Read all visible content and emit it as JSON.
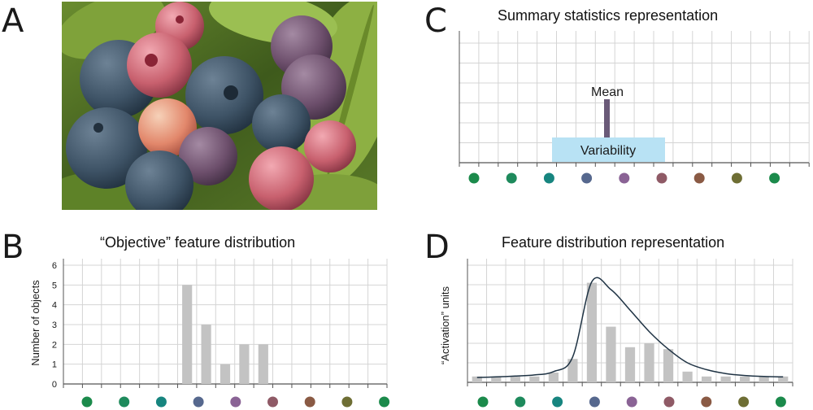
{
  "panels": {
    "a": {
      "letter": "A"
    },
    "b": {
      "letter": "B",
      "title": "“Objective” feature distribution",
      "ylabel": "Number of objects",
      "yticks": [
        "0",
        "1",
        "2",
        "3",
        "4",
        "5",
        "6"
      ]
    },
    "c": {
      "letter": "C",
      "title": "Summary statistics representation",
      "mean_label": "Mean",
      "variability_label": "Variability"
    },
    "d": {
      "letter": "D",
      "title": "Feature distribution representation",
      "ylabel": "“Activation” units"
    }
  },
  "feature_colors": [
    "#1b8a4b",
    "#1e8a5c",
    "#17857f",
    "#56688e",
    "#8a6395",
    "#8f5a66",
    "#8a5a44",
    "#6e6e34",
    "#1b8a4b"
  ],
  "colors": {
    "bar": "#c3c3c3",
    "mean_bar": "#6a5a78",
    "variability_fill": "#b8e2f4",
    "curve": "#1f3344",
    "grid": "#d4d4d4",
    "axis": "#555555"
  },
  "chart_data": [
    {
      "type": "bar",
      "panel": "B",
      "title": "“Objective” feature distribution",
      "ylabel": "Number of objects",
      "ylim": [
        0,
        6
      ],
      "values": [
        0,
        0,
        0,
        0,
        0,
        0,
        5,
        3,
        1,
        2,
        2,
        0,
        0,
        0,
        0,
        0,
        0
      ]
    },
    {
      "type": "bar",
      "panel": "D",
      "title": "Feature distribution representation",
      "ylabel": "“Activation” units",
      "bar_values": [
        0.3,
        0.3,
        0.3,
        0.3,
        0.5,
        1.2,
        5.1,
        2.85,
        1.8,
        2.0,
        1.7,
        0.55,
        0.3,
        0.3,
        0.3,
        0.3,
        0.3
      ],
      "curve_values": [
        0.25,
        0.28,
        0.32,
        0.38,
        0.55,
        1.3,
        5.15,
        4.75,
        3.7,
        2.6,
        1.7,
        1.0,
        0.65,
        0.45,
        0.35,
        0.3,
        0.28
      ],
      "ylim": [
        0,
        6
      ]
    }
  ]
}
